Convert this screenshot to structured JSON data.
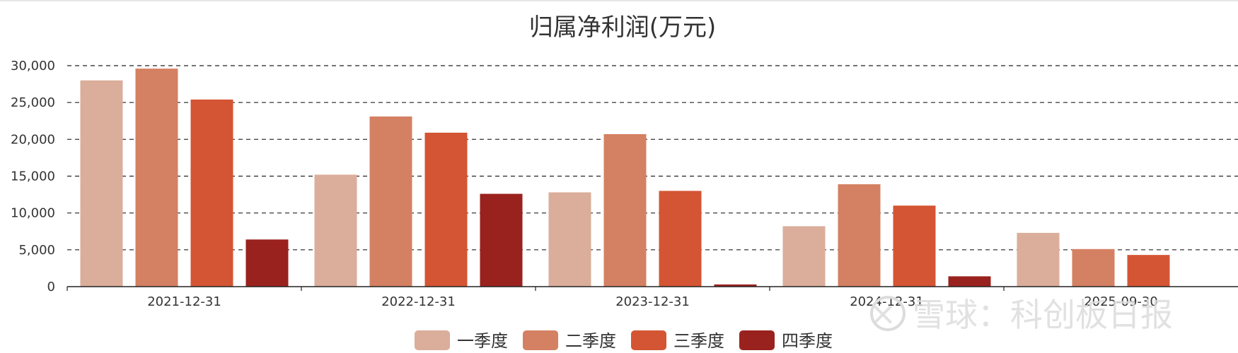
{
  "chart_data": {
    "type": "bar",
    "title": "归属净利润(万元)",
    "categories": [
      "2021-12-31",
      "2022-12-31",
      "2023-12-31",
      "2024-12-31",
      "2025-09-30"
    ],
    "series": [
      {
        "name": "一季度",
        "color": "#dbad9b",
        "values": [
          28000,
          15200,
          12800,
          8200,
          7300
        ]
      },
      {
        "name": "二季度",
        "color": "#d48062",
        "values": [
          29600,
          23100,
          20700,
          13900,
          5100
        ]
      },
      {
        "name": "三季度",
        "color": "#d45533",
        "values": [
          25400,
          20900,
          13000,
          11000,
          4300
        ]
      },
      {
        "name": "四季度",
        "color": "#9a221e",
        "values": [
          6400,
          12600,
          300,
          1400,
          null
        ]
      }
    ],
    "yticks": [
      "0",
      "5,000",
      "10,000",
      "15,000",
      "20,000",
      "25,000",
      "30,000"
    ],
    "ylim": [
      0,
      30000
    ],
    "grid": true,
    "legend_position": "bottom"
  },
  "watermark": {
    "text": "雪球：科创板日报"
  }
}
